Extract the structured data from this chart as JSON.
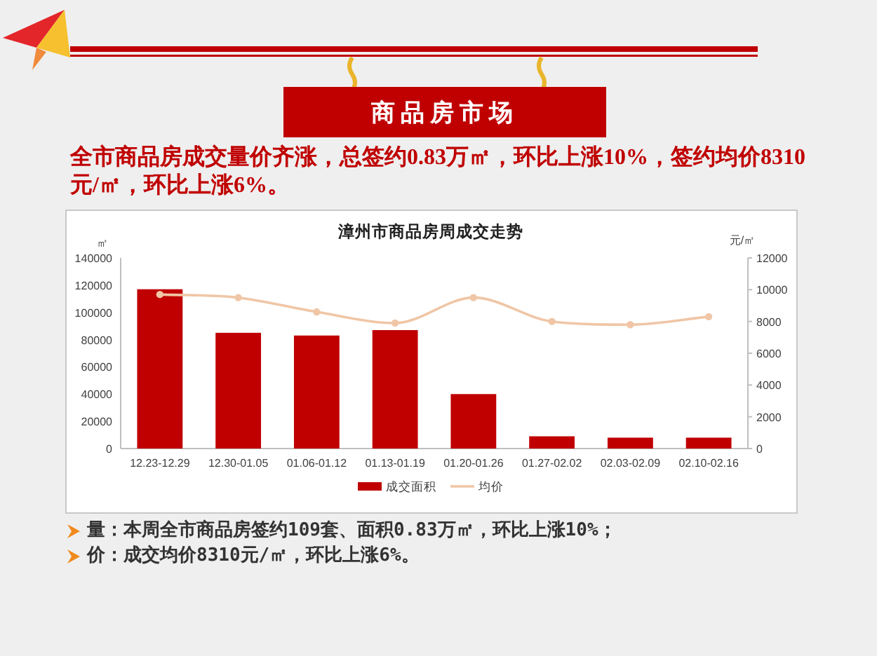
{
  "chart_data": {
    "type": "bar",
    "title": "漳州市商品房周成交走势",
    "ylabel": "㎡",
    "y2label": "元/㎡",
    "categories": [
      "12.23-12.29",
      "12.30-01.05",
      "01.06-01.12",
      "01.13-01.19",
      "01.20-01.26",
      "01.27-02.02",
      "02.03-02.09",
      "02.10-02.16"
    ],
    "series": [
      {
        "name": "成交面积",
        "color": "#c00000",
        "values": [
          117000,
          85000,
          83000,
          87000,
          40000,
          9000,
          8000,
          8000
        ]
      },
      {
        "name": "均价",
        "type": "line",
        "axis": "y2",
        "color": "#f0c6a6",
        "values": [
          9700,
          9500,
          8600,
          7900,
          9500,
          8000,
          7800,
          8300
        ]
      }
    ],
    "ylim": [
      0,
      140000
    ],
    "yticks": [
      0,
      20000,
      40000,
      60000,
      80000,
      100000,
      120000,
      140000
    ],
    "y2lim": [
      0,
      12000
    ],
    "y2ticks": [
      0,
      2000,
      4000,
      6000,
      8000,
      10000,
      12000
    ],
    "marker": "circle",
    "legend": "bottom",
    "annotations": [
      "商品房市场",
      "全市商品房成交量价齐涨，总签约0.83万㎡，环比上涨10%，签约均价8310元/㎡，环比上涨6%。",
      "量：本周全市商品房签约109套、面积0.83万㎡，环比上涨10%；",
      "价：成交均价8310元/㎡，环比上涨6%。"
    ]
  }
}
